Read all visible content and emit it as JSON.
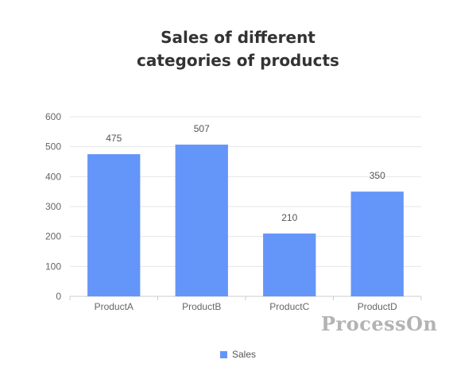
{
  "chart_data": {
    "type": "bar",
    "title_lines": [
      "Sales of different",
      "categories of products"
    ],
    "categories": [
      "ProductA",
      "ProductB",
      "ProductC",
      "ProductD"
    ],
    "series": [
      {
        "name": "Sales",
        "values": [
          475,
          507,
          210,
          350
        ],
        "color": "#6495f8"
      }
    ],
    "data_labels": [
      "475",
      "507",
      "210",
      "350"
    ],
    "y_ticks": [
      "0",
      "100",
      "200",
      "300",
      "400",
      "500",
      "600"
    ],
    "ylim": [
      0,
      600
    ],
    "grid": true,
    "legend_position": "bottom-center"
  },
  "watermark": {
    "text": "ProcessOn"
  },
  "colors": {
    "bar": "#6495f8",
    "grid": "#e6e6e6",
    "axis": "#cccccc",
    "tick_text": "#666666",
    "label_text": "#555555",
    "title_text": "#333333"
  }
}
